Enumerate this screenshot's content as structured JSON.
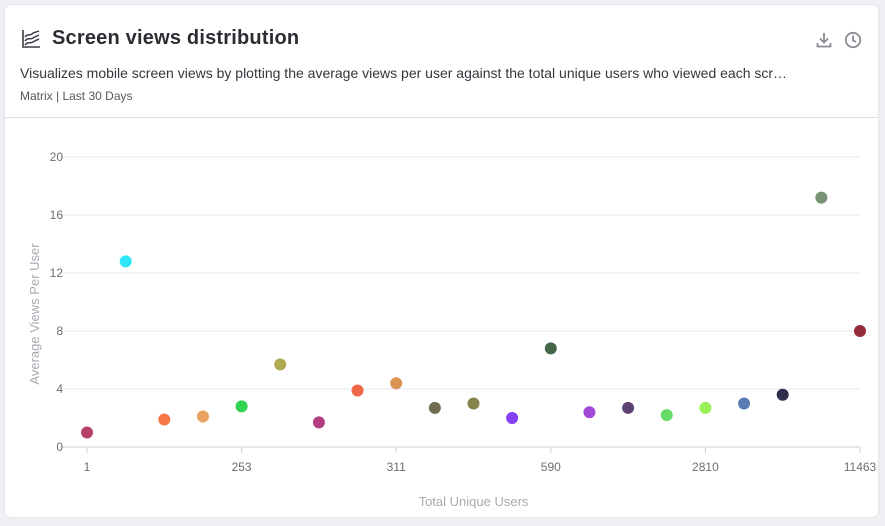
{
  "header": {
    "title": "Screen views distribution",
    "title_icon": "area-chart-icon",
    "description": "Visualizes mobile screen views by plotting the average views per user against the total unique users who viewed each scr…",
    "meta": "Matrix | Last 30 Days",
    "actions": [
      {
        "name": "download-icon"
      },
      {
        "name": "history-icon"
      }
    ]
  },
  "chart_data": {
    "type": "scatter",
    "xlabel": "Total Unique Users",
    "ylabel": "Average Views Per User",
    "ylim": [
      0,
      20
    ],
    "yticks": [
      0,
      4,
      8,
      12,
      16,
      20
    ],
    "x_tick_labels": [
      "1",
      "253",
      "311",
      "590",
      "2810",
      "11463"
    ],
    "x_tick_positions": [
      0,
      4,
      8,
      12,
      16,
      20
    ],
    "xlim": [
      0,
      20
    ],
    "grid": true,
    "points": [
      {
        "x": 0,
        "y": 1.0,
        "color": "#b0305a"
      },
      {
        "x": 1,
        "y": 12.8,
        "color": "#1ee3f5"
      },
      {
        "x": 2,
        "y": 1.9,
        "color": "#f56a3a"
      },
      {
        "x": 3,
        "y": 2.1,
        "color": "#e89a55"
      },
      {
        "x": 4,
        "y": 2.8,
        "color": "#1ed040"
      },
      {
        "x": 5,
        "y": 5.7,
        "color": "#a9a343"
      },
      {
        "x": 6,
        "y": 1.7,
        "color": "#ad2c78"
      },
      {
        "x": 7,
        "y": 3.9,
        "color": "#ee5a35"
      },
      {
        "x": 8,
        "y": 4.4,
        "color": "#d68a43"
      },
      {
        "x": 9,
        "y": 2.7,
        "color": "#646042"
      },
      {
        "x": 10,
        "y": 3.0,
        "color": "#7d7a3c"
      },
      {
        "x": 11,
        "y": 2.0,
        "color": "#7a30f0"
      },
      {
        "x": 12,
        "y": 6.8,
        "color": "#355a38"
      },
      {
        "x": 13,
        "y": 2.4,
        "color": "#9a3ad6"
      },
      {
        "x": 14,
        "y": 2.7,
        "color": "#4f3266"
      },
      {
        "x": 15,
        "y": 2.2,
        "color": "#59d65a"
      },
      {
        "x": 16,
        "y": 2.7,
        "color": "#8ef049"
      },
      {
        "x": 17,
        "y": 3.0,
        "color": "#4a72ad"
      },
      {
        "x": 18,
        "y": 3.6,
        "color": "#1e1c3e"
      },
      {
        "x": 19,
        "y": 17.2,
        "color": "#6b8a67"
      },
      {
        "x": 20,
        "y": 8.0,
        "color": "#8c1a2a"
      }
    ]
  }
}
